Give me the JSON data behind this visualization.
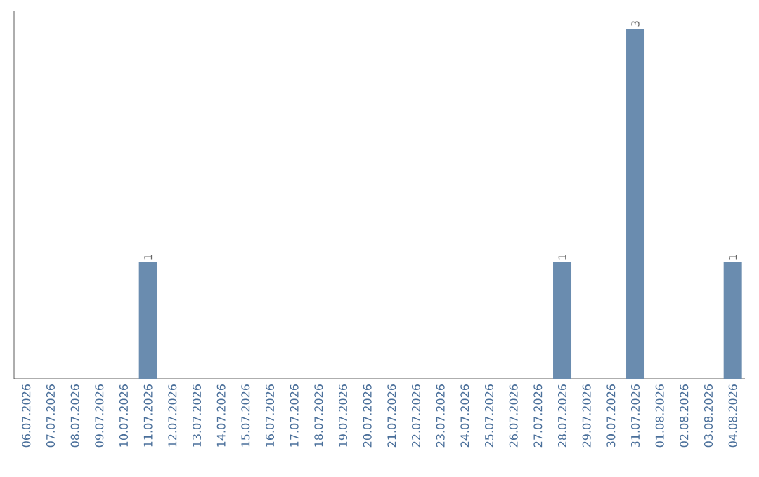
{
  "chart_data": {
    "type": "bar",
    "categories": [
      "06.07.2026",
      "07.07.2026",
      "08.07.2026",
      "09.07.2026",
      "10.07.2026",
      "11.07.2026",
      "12.07.2026",
      "13.07.2026",
      "14.07.2026",
      "15.07.2026",
      "16.07.2026",
      "17.07.2026",
      "18.07.2026",
      "19.07.2026",
      "20.07.2026",
      "21.07.2026",
      "22.07.2026",
      "23.07.2026",
      "24.07.2026",
      "25.07.2026",
      "26.07.2026",
      "27.07.2026",
      "28.07.2026",
      "29.07.2026",
      "30.07.2026",
      "31.07.2026",
      "01.08.2026",
      "02.08.2026",
      "03.08.2026",
      "04.08.2026"
    ],
    "values": [
      0,
      0,
      0,
      0,
      0,
      1,
      0,
      0,
      0,
      0,
      0,
      0,
      0,
      0,
      0,
      0,
      0,
      0,
      0,
      0,
      0,
      0,
      1,
      0,
      0,
      3,
      0,
      0,
      0,
      1
    ],
    "value_labels": [
      null,
      null,
      null,
      null,
      null,
      "1",
      null,
      null,
      null,
      null,
      null,
      null,
      null,
      null,
      null,
      null,
      null,
      null,
      null,
      null,
      null,
      null,
      "1",
      null,
      null,
      "3",
      null,
      null,
      null,
      "1"
    ],
    "color": "#6a8caf",
    "tick_labels": "x",
    "grid": false
  }
}
